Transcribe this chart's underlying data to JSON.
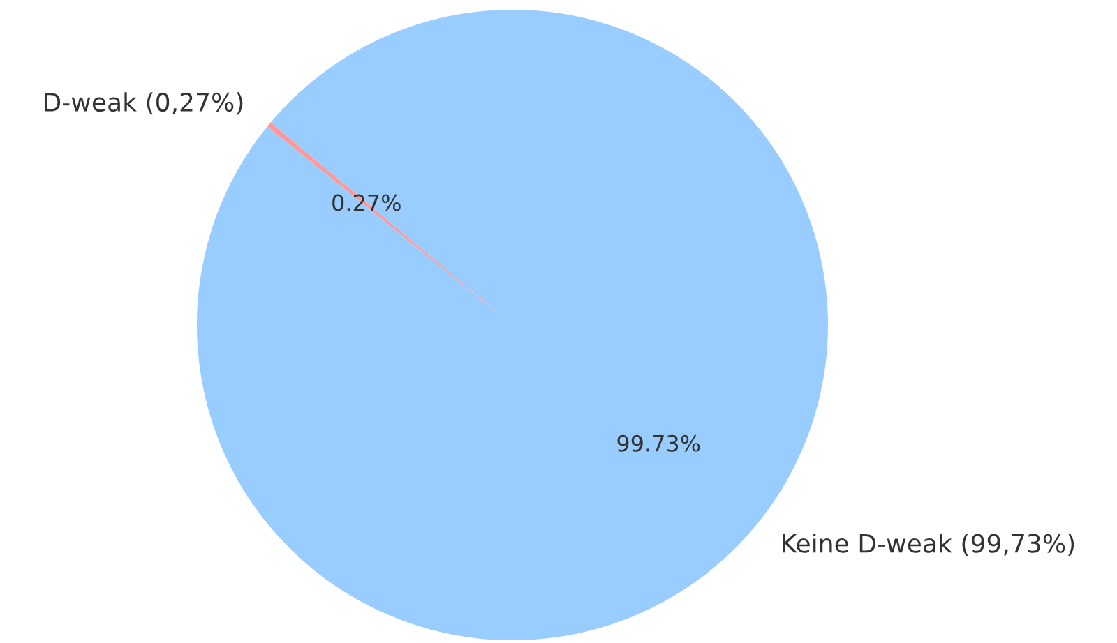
{
  "chart_data": {
    "type": "pie",
    "categories": [
      "D-weak (0,27%)",
      "Keine D-weak (99,73%)"
    ],
    "values": [
      0.27,
      99.73
    ],
    "colors": [
      "#ff9999",
      "#99ccff"
    ],
    "value_labels": [
      "0.27%",
      "99.73%"
    ]
  }
}
